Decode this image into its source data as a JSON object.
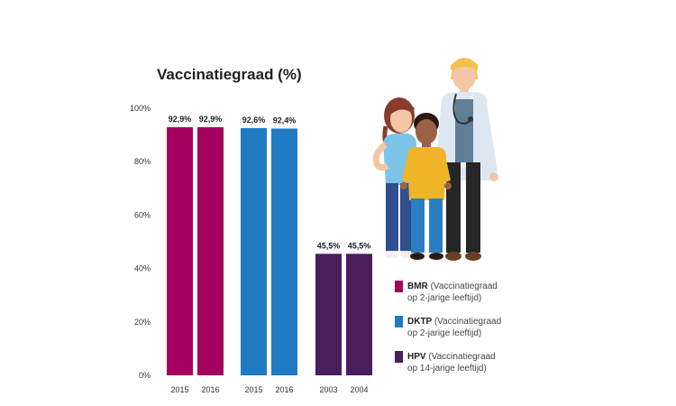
{
  "chart_data": {
    "type": "bar",
    "title": "Vaccinatiegraad (%)",
    "ylim": [
      0,
      100
    ],
    "yticks": [
      "0%",
      "20%",
      "40%",
      "60%",
      "80%",
      "100%"
    ],
    "grid": false,
    "legend_position": "right",
    "groups": [
      {
        "name": "BMR",
        "description_line1": "(Vaccinatiegraad",
        "description_line2": "op 2-jarige leeftijd)",
        "color": "#a3005f",
        "categories": [
          "2015",
          "2016"
        ],
        "values": [
          92.9,
          92.9
        ],
        "value_labels": [
          "92,9%",
          "92,9%"
        ]
      },
      {
        "name": "DKTP",
        "description_line1": "(Vaccinatiegraad",
        "description_line2": "op 2-jarige leeftijd)",
        "color": "#1e7bc4",
        "categories": [
          "2015",
          "2016"
        ],
        "values": [
          92.6,
          92.4
        ],
        "value_labels": [
          "92,6%",
          "92,4%"
        ]
      },
      {
        "name": "HPV",
        "description_line1": "(Vaccinatiegraad",
        "description_line2": "op 14-jarige leeftijd)",
        "color": "#4a1d5c",
        "categories": [
          "2003",
          "2004"
        ],
        "values": [
          45.5,
          45.5
        ],
        "value_labels": [
          "45,5%",
          "45,5%"
        ]
      }
    ]
  },
  "illustration": {
    "icon": "family-with-doctor-illustration",
    "skin_color": "#f3c7a6",
    "doctor_hair_color": "#f2c14e",
    "doctor_coat_color": "#dde7f2",
    "girl_top_color": "#7ec3e8",
    "boy_top_color": "#f0b429"
  }
}
